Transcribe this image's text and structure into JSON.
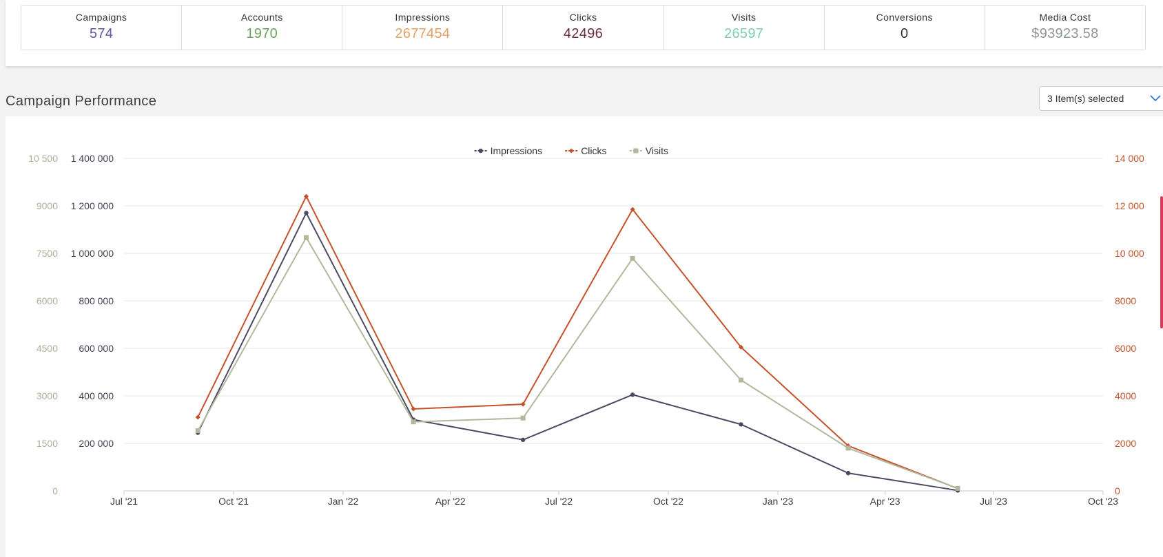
{
  "kpis": [
    {
      "label": "Campaigns",
      "value": "574",
      "color": "#5b5ba8"
    },
    {
      "label": "Accounts",
      "value": "1970",
      "color": "#6aa25f"
    },
    {
      "label": "Impressions",
      "value": "2677454",
      "color": "#e8a060"
    },
    {
      "label": "Clicks",
      "value": "42496",
      "color": "#6b2b48"
    },
    {
      "label": "Visits",
      "value": "26597",
      "color": "#7fcfb5"
    },
    {
      "label": "Conversions",
      "value": "0",
      "color": "#333333"
    },
    {
      "label": "Media Cost",
      "value": "$93923.58",
      "color": "#8d9a8d"
    }
  ],
  "section": {
    "title": "Campaign Performance"
  },
  "selector": {
    "label": "3 Item(s) selected",
    "icon": "chevron-down-icon"
  },
  "chart_data": {
    "type": "line",
    "x_ticks": [
      "Jul '21",
      "Oct '21",
      "Jan '22",
      "Apr '22",
      "Jul '22",
      "Oct '22",
      "Jan '23",
      "Apr '23",
      "Jul '23",
      "Oct '23"
    ],
    "x_dates": [
      "2021-09-01",
      "2021-12-01",
      "2022-03-01",
      "2022-06-01",
      "2022-09-01",
      "2022-12-01",
      "2023-03-01",
      "2023-06-01"
    ],
    "xlim": [
      "2021-07-01",
      "2023-10-01"
    ],
    "axes": {
      "left_outer": {
        "ticks": [
          "0",
          "1500",
          "3000",
          "4500",
          "6000",
          "7500",
          "9000",
          "10 500"
        ],
        "ylim": [
          0,
          10500
        ],
        "color": "#a8b39a"
      },
      "left_inner": {
        "ticks": [
          "200 000",
          "400 000",
          "600 000",
          "800 000",
          "1 000 000",
          "1 200 000",
          "1 400 000"
        ],
        "ylim": [
          0,
          1400000
        ],
        "color": "#3f3f4f"
      },
      "right": {
        "ticks": [
          "0",
          "2000",
          "4000",
          "6000",
          "8000",
          "10 000",
          "12 000",
          "14 000"
        ],
        "ylim": [
          0,
          14000
        ],
        "color": "#c4522a"
      }
    },
    "series": [
      {
        "name": "Impressions",
        "axis": "left_inner",
        "color": "#4a4a63",
        "marker": "circle",
        "values": [
          245000,
          1170000,
          300000,
          215000,
          405000,
          280000,
          75000,
          2000
        ]
      },
      {
        "name": "Clicks",
        "axis": "right",
        "color": "#c4522a",
        "marker": "diamond",
        "values": [
          3100,
          12400,
          3450,
          3650,
          11850,
          6050,
          1900,
          100
        ]
      },
      {
        "name": "Visits",
        "axis": "left_outer",
        "color": "#b2b89d",
        "marker": "square",
        "values": [
          1900,
          8000,
          2180,
          2300,
          7340,
          3500,
          1350,
          80
        ]
      }
    ],
    "legend": "top-center",
    "grid": true
  }
}
